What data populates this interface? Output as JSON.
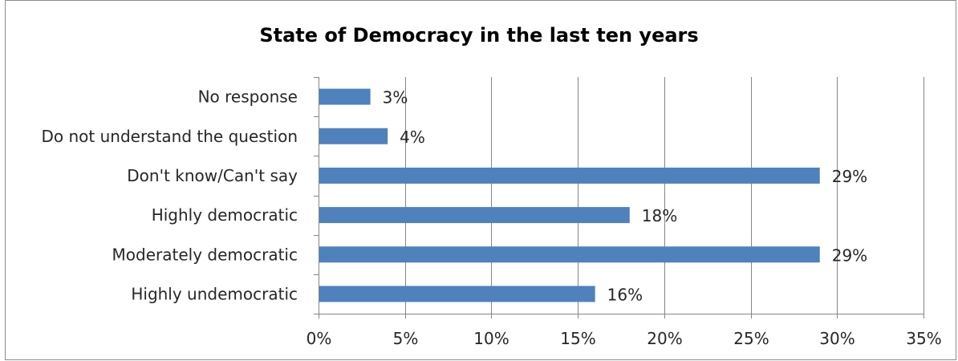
{
  "chart_data": {
    "type": "bar",
    "orientation": "horizontal",
    "title": "State of Democracy in the last ten years",
    "categories": [
      "No response",
      "Do not understand the question",
      "Don't know/Can't say",
      "Highly democratic",
      "Moderately democratic",
      "Highly undemocratic"
    ],
    "values": [
      3,
      4,
      29,
      18,
      29,
      16
    ],
    "data_labels": [
      "3%",
      "4%",
      "29%",
      "18%",
      "29%",
      "16%"
    ],
    "x_ticks": [
      "0%",
      "5%",
      "10%",
      "15%",
      "20%",
      "25%",
      "30%",
      "35%"
    ],
    "xlim": [
      0,
      35
    ],
    "xlabel": "",
    "ylabel": "",
    "grid": "vertical",
    "legend": "none",
    "bar_color": "#4f81bd",
    "grid_color": "#868686"
  }
}
